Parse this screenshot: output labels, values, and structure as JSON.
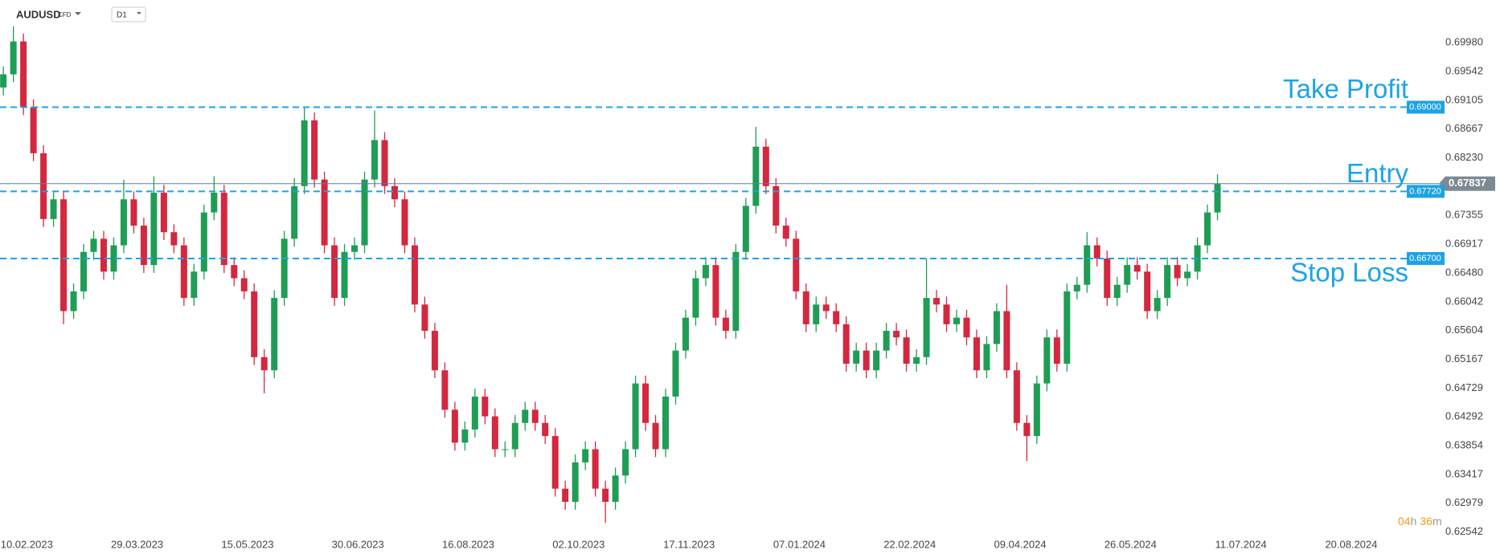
{
  "header": {
    "symbol": "AUDUSD",
    "instrument_type": "CFD",
    "timeframe": "D1"
  },
  "chart_data": {
    "type": "candlestick",
    "x": [
      0,
      3,
      6,
      9,
      12,
      15,
      18,
      21,
      24,
      27,
      30,
      33,
      36,
      39,
      42,
      45,
      48,
      51,
      54,
      57,
      60,
      63,
      66,
      69,
      72,
      75,
      78,
      81,
      84,
      87,
      90,
      93,
      96,
      99,
      102,
      105,
      108,
      111,
      114,
      117,
      120,
      123,
      126,
      129,
      132,
      135,
      138,
      141,
      144,
      147,
      150,
      153,
      156,
      159,
      162,
      165,
      168,
      171,
      174,
      177,
      180,
      183,
      186,
      189,
      192,
      195,
      198,
      201,
      204,
      207,
      210,
      213,
      216,
      219,
      222,
      225,
      228,
      231,
      234,
      237,
      240,
      243,
      246,
      249,
      252,
      255,
      258,
      261,
      264,
      267,
      270,
      273,
      276,
      279,
      282,
      285,
      288,
      291,
      294,
      297,
      300,
      303,
      306,
      309,
      312,
      315,
      318,
      321,
      324,
      327,
      330,
      333,
      336,
      339,
      342,
      345,
      348,
      351,
      354,
      357,
      360,
      363
    ],
    "open": [
      0.693,
      0.695,
      0.7,
      0.69,
      0.683,
      0.673,
      0.676,
      0.659,
      0.662,
      0.668,
      0.67,
      0.665,
      0.669,
      0.676,
      0.672,
      0.666,
      0.677,
      0.671,
      0.669,
      0.661,
      0.665,
      0.674,
      0.677,
      0.666,
      0.664,
      0.662,
      0.652,
      0.65,
      0.661,
      0.67,
      0.678,
      0.688,
      0.679,
      0.669,
      0.661,
      0.668,
      0.669,
      0.679,
      0.685,
      0.678,
      0.676,
      0.669,
      0.66,
      0.656,
      0.65,
      0.644,
      0.639,
      0.641,
      0.646,
      0.643,
      0.638,
      0.638,
      0.642,
      0.644,
      0.642,
      0.64,
      0.632,
      0.63,
      0.636,
      0.638,
      0.632,
      0.63,
      0.634,
      0.638,
      0.648,
      0.642,
      0.638,
      0.646,
      0.653,
      0.658,
      0.664,
      0.666,
      0.658,
      0.656,
      0.668,
      0.675,
      0.684,
      0.678,
      0.672,
      0.67,
      0.662,
      0.657,
      0.66,
      0.659,
      0.657,
      0.651,
      0.653,
      0.65,
      0.653,
      0.656,
      0.655,
      0.651,
      0.652,
      0.661,
      0.66,
      0.657,
      0.658,
      0.655,
      0.65,
      0.654,
      0.659,
      0.65,
      0.642,
      0.64,
      0.648,
      0.655,
      0.651,
      0.662,
      0.663,
      0.669,
      0.667,
      0.661,
      0.663,
      0.666,
      0.665,
      0.659,
      0.661,
      0.666,
      0.664,
      0.665,
      0.669,
      0.674
    ],
    "high": [
      0.6962,
      0.7023,
      0.7012,
      0.6912,
      0.6842,
      0.6772,
      0.6772,
      0.6632,
      0.6692,
      0.6712,
      0.6712,
      0.6702,
      0.679,
      0.6772,
      0.6732,
      0.6795,
      0.6782,
      0.6722,
      0.6702,
      0.6662,
      0.6752,
      0.6795,
      0.6782,
      0.6672,
      0.6652,
      0.6632,
      0.6532,
      0.6622,
      0.6712,
      0.6792,
      0.69,
      0.6892,
      0.6802,
      0.6702,
      0.6692,
      0.6702,
      0.6802,
      0.6895,
      0.6862,
      0.6792,
      0.6772,
      0.6702,
      0.6612,
      0.6572,
      0.6512,
      0.6452,
      0.6422,
      0.6472,
      0.6472,
      0.6442,
      0.6392,
      0.6432,
      0.6452,
      0.6452,
      0.6432,
      0.6412,
      0.6332,
      0.6372,
      0.6392,
      0.6392,
      0.6332,
      0.6352,
      0.6392,
      0.6492,
      0.6492,
      0.6432,
      0.6472,
      0.6542,
      0.6592,
      0.6652,
      0.6672,
      0.6672,
      0.6592,
      0.6692,
      0.6762,
      0.687,
      0.6852,
      0.6792,
      0.6732,
      0.6712,
      0.6632,
      0.6612,
      0.6612,
      0.6602,
      0.6582,
      0.6542,
      0.6542,
      0.6542,
      0.6572,
      0.6572,
      0.6562,
      0.6532,
      0.667,
      0.6622,
      0.6612,
      0.6592,
      0.6592,
      0.6562,
      0.6552,
      0.6602,
      0.663,
      0.6512,
      0.6432,
      0.6492,
      0.6562,
      0.6562,
      0.6632,
      0.6642,
      0.671,
      0.6702,
      0.6682,
      0.6642,
      0.6672,
      0.6672,
      0.6662,
      0.6622,
      0.6672,
      0.6672,
      0.6662,
      0.6702,
      0.6752,
      0.6798
    ],
    "low": [
      0.6918,
      0.6938,
      0.6888,
      0.6818,
      0.6718,
      0.6718,
      0.657,
      0.6578,
      0.6608,
      0.6668,
      0.6638,
      0.6638,
      0.6678,
      0.6708,
      0.6648,
      0.6648,
      0.6698,
      0.6678,
      0.6598,
      0.6598,
      0.6638,
      0.6728,
      0.6648,
      0.6628,
      0.6608,
      0.6508,
      0.6465,
      0.6488,
      0.6598,
      0.6688,
      0.6768,
      0.6778,
      0.6678,
      0.6598,
      0.6598,
      0.6668,
      0.6678,
      0.6778,
      0.6768,
      0.6748,
      0.6678,
      0.6588,
      0.6548,
      0.6488,
      0.6428,
      0.6378,
      0.6378,
      0.6398,
      0.6418,
      0.6368,
      0.6368,
      0.6368,
      0.6408,
      0.6408,
      0.6388,
      0.6308,
      0.6288,
      0.6288,
      0.6348,
      0.6308,
      0.6268,
      0.6288,
      0.6328,
      0.6368,
      0.6408,
      0.6368,
      0.6368,
      0.6448,
      0.6518,
      0.6568,
      0.6628,
      0.6568,
      0.6548,
      0.6548,
      0.6668,
      0.6738,
      0.6768,
      0.6708,
      0.6688,
      0.6608,
      0.6558,
      0.6558,
      0.6578,
      0.6558,
      0.6498,
      0.6498,
      0.6488,
      0.6488,
      0.6518,
      0.6538,
      0.6498,
      0.6498,
      0.6508,
      0.6588,
      0.6558,
      0.6558,
      0.6538,
      0.6488,
      0.6488,
      0.6528,
      0.6488,
      0.6408,
      0.6362,
      0.6388,
      0.6468,
      0.6498,
      0.6498,
      0.6608,
      0.6618,
      0.6658,
      0.6598,
      0.6598,
      0.6618,
      0.6638,
      0.6578,
      0.6578,
      0.6598,
      0.6628,
      0.6628,
      0.6638,
      0.6678,
      0.6728
    ],
    "close": [
      0.695,
      0.7,
      0.69,
      0.683,
      0.673,
      0.676,
      0.659,
      0.662,
      0.668,
      0.67,
      0.665,
      0.669,
      0.676,
      0.672,
      0.666,
      0.677,
      0.671,
      0.669,
      0.661,
      0.665,
      0.674,
      0.677,
      0.666,
      0.664,
      0.662,
      0.652,
      0.65,
      0.661,
      0.67,
      0.678,
      0.688,
      0.679,
      0.669,
      0.661,
      0.668,
      0.669,
      0.679,
      0.685,
      0.678,
      0.676,
      0.669,
      0.66,
      0.656,
      0.65,
      0.644,
      0.639,
      0.641,
      0.646,
      0.643,
      0.638,
      0.638,
      0.642,
      0.644,
      0.642,
      0.64,
      0.632,
      0.63,
      0.636,
      0.638,
      0.632,
      0.63,
      0.634,
      0.638,
      0.648,
      0.642,
      0.638,
      0.646,
      0.653,
      0.658,
      0.664,
      0.666,
      0.658,
      0.656,
      0.668,
      0.675,
      0.684,
      0.678,
      0.672,
      0.67,
      0.662,
      0.657,
      0.66,
      0.659,
      0.657,
      0.651,
      0.653,
      0.65,
      0.653,
      0.656,
      0.655,
      0.651,
      0.652,
      0.661,
      0.66,
      0.657,
      0.658,
      0.655,
      0.65,
      0.654,
      0.659,
      0.65,
      0.642,
      0.64,
      0.648,
      0.655,
      0.651,
      0.662,
      0.663,
      0.669,
      0.667,
      0.661,
      0.663,
      0.666,
      0.665,
      0.659,
      0.661,
      0.666,
      0.664,
      0.665,
      0.669,
      0.674,
      0.67837
    ],
    "up_color": "#1f9d55",
    "down_color": "#d3283f",
    "xlim": [
      -1,
      428
    ],
    "ylim": [
      0.625,
      0.7063
    ],
    "xticks": [
      {
        "value": 7,
        "label": "10.02.2023"
      },
      {
        "value": 40,
        "label": "29.03.2023"
      },
      {
        "value": 73,
        "label": "15.05.2023"
      },
      {
        "value": 106,
        "label": "30.06.2023"
      },
      {
        "value": 139,
        "label": "16.08.2023"
      },
      {
        "value": 172,
        "label": "02.10.2023"
      },
      {
        "value": 205,
        "label": "17.11.2023"
      },
      {
        "value": 238,
        "label": "07.01.2024"
      },
      {
        "value": 271,
        "label": "22.02.2024"
      },
      {
        "value": 304,
        "label": "09.04.2024"
      },
      {
        "value": 337,
        "label": "26.05.2024"
      },
      {
        "value": 370,
        "label": "11.07.2024"
      },
      {
        "value": 403,
        "label": "20.08.2024"
      }
    ],
    "yticks": [
      {
        "value": 0.6998,
        "label": "0.69980"
      },
      0.69542,
      0.69105,
      0.68667,
      {
        "value": 0.6823,
        "label": "0.68230"
      },
      0.67355,
      0.66917,
      {
        "value": 0.6648,
        "label": "0.66480"
      },
      0.66042,
      0.65604,
      0.65167,
      0.64729,
      0.64292,
      0.63854,
      0.63417,
      0.62979,
      0.62542
    ],
    "levels": [
      {
        "name": "Take Profit",
        "value": 0.69,
        "label": "0.69000"
      },
      {
        "name": "Entry",
        "value": 0.6772,
        "label": "0.67720"
      },
      {
        "name": "Stop Loss",
        "value": 0.667,
        "label": "0.66700"
      }
    ],
    "level_color": "#1ca3e6",
    "last_price": 0.67837,
    "countdown": {
      "hours": "04",
      "hours_unit": "h",
      "minutes": "36",
      "minutes_unit": "m"
    }
  }
}
